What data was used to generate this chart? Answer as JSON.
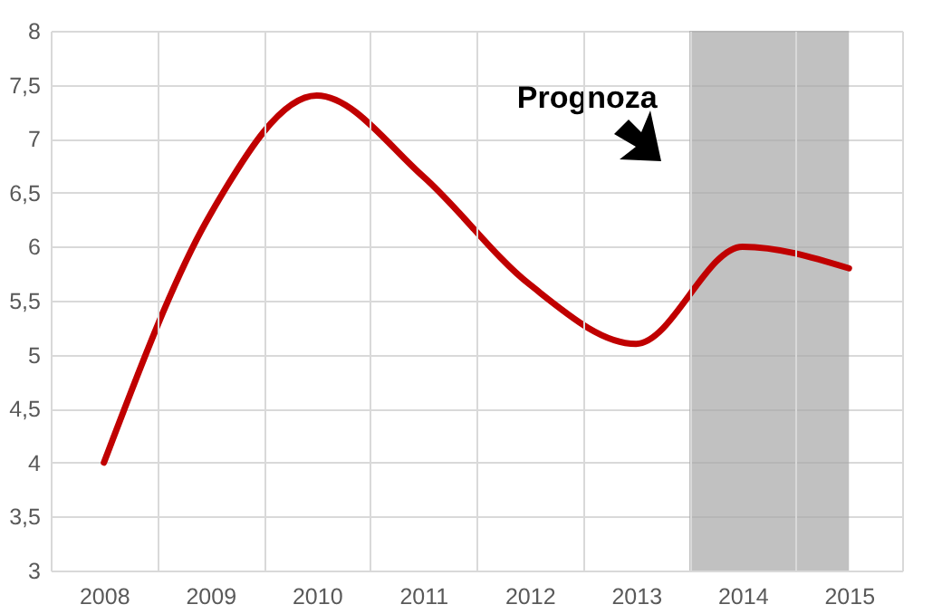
{
  "chart_data": {
    "type": "line",
    "categories": [
      "2008",
      "2009",
      "2010",
      "2011",
      "2012",
      "2013",
      "2014",
      "2015"
    ],
    "series": [
      {
        "color": "#c00000",
        "values": [
          4.0,
          6.3,
          7.4,
          6.65,
          5.65,
          5.1,
          6.0,
          5.8
        ]
      }
    ],
    "ylim": [
      3,
      8
    ],
    "yticks": [
      3,
      {
        "value": 3.5,
        "label": "3,5"
      },
      4,
      {
        "value": 4.5,
        "label": "4,5"
      },
      5,
      {
        "value": 5.5,
        "label": "5,5"
      },
      6,
      {
        "value": 6.5,
        "label": "6,5"
      },
      7,
      {
        "value": 7.5,
        "label": "7,5"
      },
      8
    ],
    "grid": true,
    "marker": "none",
    "line_style": "solid",
    "bands": [
      {
        "axis": "x",
        "from": "2014",
        "to": "2015",
        "color": "#a6a6a6"
      }
    ],
    "annotations": [
      "Prognoza"
    ]
  }
}
